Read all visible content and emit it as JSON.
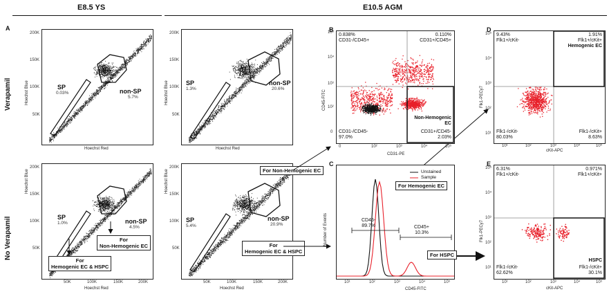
{
  "headers": {
    "yolk_sac": "E8.5 YS",
    "agm": "E10.5 AGM"
  },
  "panel_letters": {
    "a": "A",
    "b": "B",
    "c": "C",
    "d": "D",
    "e": "E"
  },
  "row_labels": {
    "verapamil": "Verapamil",
    "no_verapamil": "No Verapamil"
  },
  "hoechst": {
    "xlabel": "Hoechst Red",
    "ylabel": "Hoechst Blue",
    "y_ticks": [
      "200K",
      "150K",
      "100K",
      "50K"
    ],
    "x_ticks": [
      "50K",
      "100K",
      "150K",
      "200K"
    ],
    "panels": [
      {
        "sp": "SP",
        "sp_pct": "0.03%",
        "nsp": "non-SP",
        "nsp_pct": "5.7%"
      },
      {
        "sp": "SP",
        "sp_pct": "1.3%",
        "nsp": "non-SP",
        "nsp_pct": "20.6%"
      },
      {
        "sp": "SP",
        "sp_pct": "1.0%",
        "nsp": "non-SP",
        "nsp_pct": "4.5%"
      },
      {
        "sp": "SP",
        "sp_pct": "5.4%",
        "nsp": "non-SP",
        "nsp_pct": "20.9%"
      }
    ]
  },
  "callouts": {
    "non_hemo_1": "For\nNon-Hemogenic EC",
    "hemo_hspc_1": "For\nHemogenic EC & HSPC",
    "non_hemo_2": "For Non-Hemogenic EC",
    "hemo_hspc_2": "For\nHemogenic EC & HSPC",
    "hemo": "For Hemogenic EC",
    "hspc": "For HSPC"
  },
  "panel_b": {
    "xlabel": "CD31-PE",
    "ylabel": "CD45-FITC",
    "q_ul": "0.838%\nCD31-/CD45+",
    "q_ur": "0.110%\nCD31+/CD45+",
    "q_ll": "CD31-/CD45-\n97.0%",
    "q_lr_title": "Non-Hemogenic\nEC",
    "q_lr": "CD31+/CD45-\n2.03%",
    "ticks": [
      "0",
      "10²",
      "10³",
      "10⁴",
      "10⁵"
    ],
    "y_ticks": [
      "10⁵",
      "10⁴",
      "10³",
      "10²",
      "0"
    ]
  },
  "panel_c": {
    "xlabel": "CD45-FITC",
    "ylabel": "Number of Events",
    "legend": [
      "Unstained",
      "Sample"
    ],
    "neg_label": "CD45-\n89.7%",
    "pos_label": "CD45+\n10.3%",
    "ticks": [
      "10¹",
      "10²",
      "10³",
      "10⁴",
      "10⁵"
    ]
  },
  "panel_d": {
    "xlabel": "cKit-APC",
    "ylabel": "Flk1-PECy7",
    "q_ul": "9.43%\nFlk1+/cKit-",
    "q_ur": "1.91%\nFlk1+/cKit+",
    "q_ur_title": "Hemogenic EC",
    "q_ll": "Flk1-/cKit-\n80.03%",
    "q_lr": "Flk1-/cKit+\n8.63%",
    "ticks": [
      "10¹",
      "10²",
      "10³",
      "10⁴",
      "10⁵"
    ],
    "y_ticks": [
      "10⁵",
      "10⁴",
      "10³",
      "10²",
      "10¹"
    ]
  },
  "panel_e": {
    "xlabel": "cKit-APC",
    "ylabel": "Flk1-PECy7",
    "q_ul": "6.31%\nFlk1+/cKit-",
    "q_ur": "0.971%\nFlk1+/cKit+",
    "q_ll": "Flk1-/cKit-\n62.62%",
    "q_lr_title": "HSPC",
    "q_lr": "Flk1-/cKit+\n30.1%",
    "ticks": [
      "10¹",
      "10²",
      "10³",
      "10⁴",
      "10⁵"
    ],
    "y_ticks": [
      "10⁵",
      "10⁴",
      "10³",
      "10²",
      "10¹"
    ]
  },
  "colors": {
    "red": "#e8202a",
    "black": "#111111",
    "gray": "#888888"
  }
}
